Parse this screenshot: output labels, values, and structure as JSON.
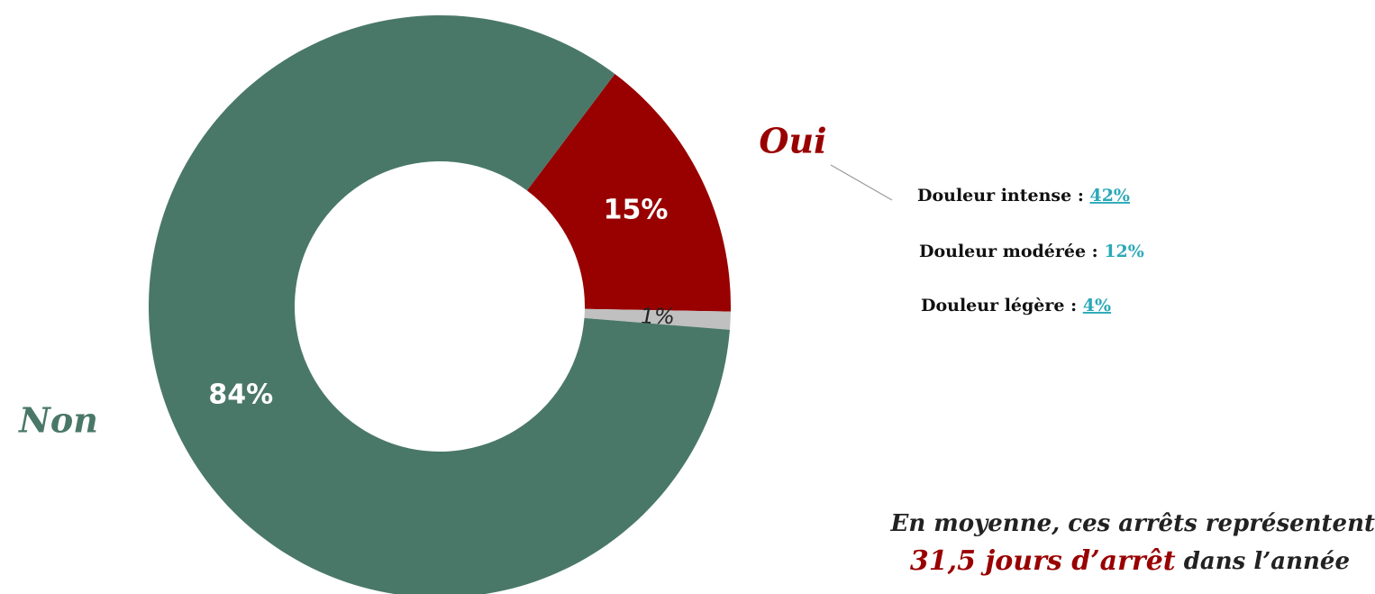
{
  "chart_data": {
    "type": "donut",
    "categories": [
      "Oui",
      null,
      "Non"
    ],
    "values": [
      15,
      1,
      84
    ],
    "value_labels": [
      "15%",
      "1%",
      "84%"
    ],
    "colors": [
      "#990000",
      "#c0c0c0",
      "#4a7868"
    ],
    "label_colors": [
      "#990000",
      null,
      "#4a7868"
    ],
    "breakdown": [
      {
        "label": "Douleur intense :",
        "value_label": "42%",
        "underline": true
      },
      {
        "label": "Douleur modérée  :",
        "value_label": "12%",
        "underline": false
      },
      {
        "label": "Douleur légère :",
        "value_label": "4%",
        "underline": true
      }
    ],
    "note": {
      "line1": "En moyenne, ces arrêts représentent",
      "highlight": "31,5 jours d’arrêt",
      "rest": "dans l’année"
    }
  }
}
